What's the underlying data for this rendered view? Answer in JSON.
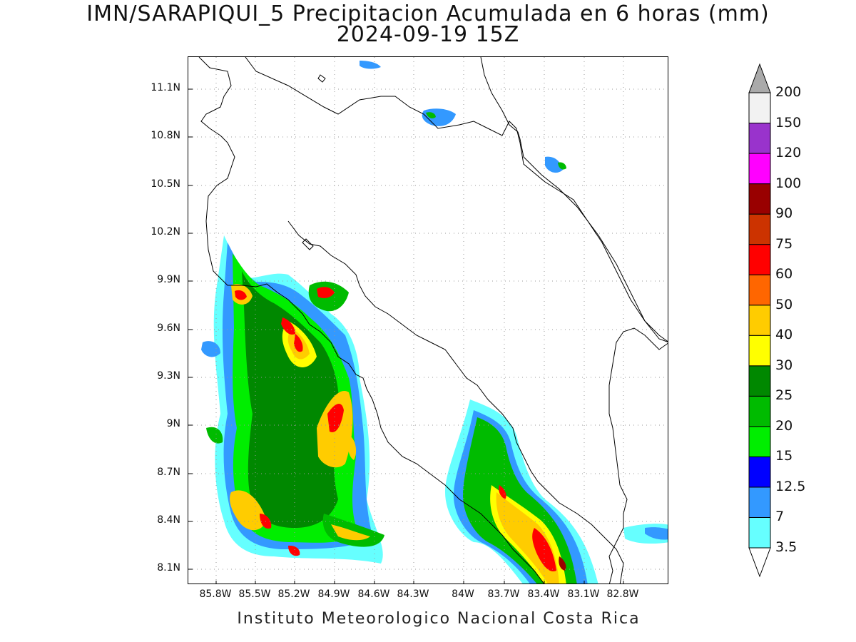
{
  "title": {
    "line1": "IMN/SARAPIQUI_5 Precipitacion Acumulada en 6 horas (mm)",
    "line2": "2024-09-19 15Z"
  },
  "footer": "Instituto Meteorologico Nacional Costa Rica",
  "map": {
    "lat_labels": [
      "11.1N",
      "10.8N",
      "10.5N",
      "10.2N",
      "9.9N",
      "9.6N",
      "9.3N",
      "9N",
      "8.7N",
      "8.4N",
      "8.1N"
    ],
    "lon_labels": [
      "85.8W",
      "85.5W",
      "85.2W",
      "84.9W",
      "84.6W",
      "84.3W",
      "84W",
      "83.7W",
      "83.4W",
      "83.1W",
      "82.8W"
    ]
  },
  "colorbar": {
    "levels": [
      "3.5",
      "7",
      "12.5",
      "15",
      "20",
      "25",
      "30",
      "40",
      "50",
      "60",
      "75",
      "90",
      "100",
      "120",
      "150",
      "200"
    ],
    "colors": [
      "#66ffff",
      "#3399ff",
      "#0000ff",
      "#00ee00",
      "#00bb00",
      "#008800",
      "#ffff00",
      "#ffcc00",
      "#ff6600",
      "#ff0000",
      "#cc3300",
      "#990000",
      "#ff00ff",
      "#9933cc",
      "#f2f2f2",
      "#aaaaaa"
    ]
  }
}
